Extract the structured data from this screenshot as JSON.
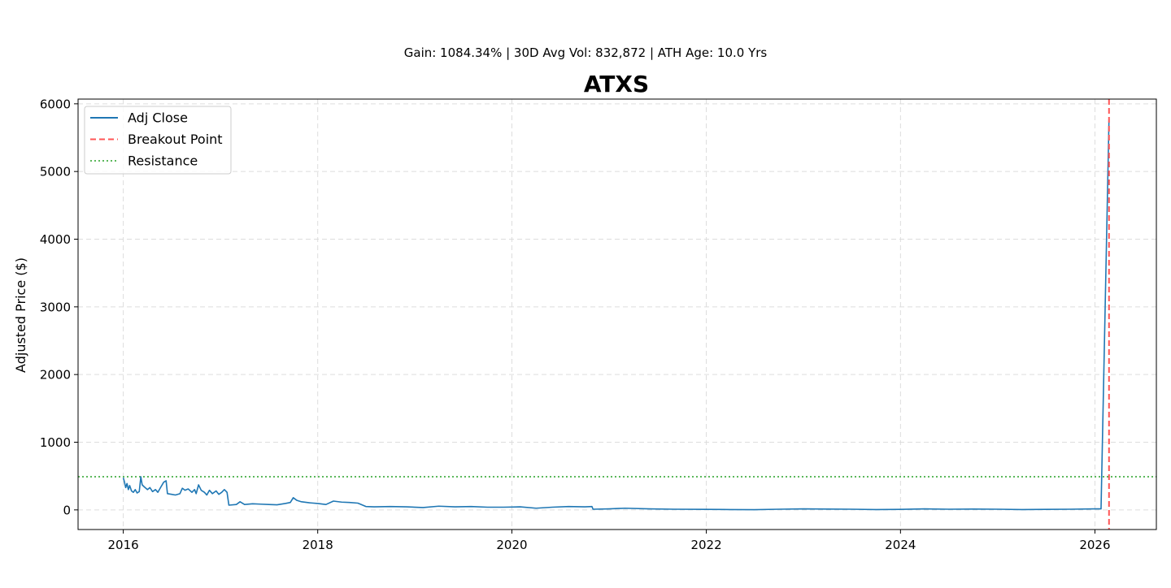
{
  "header": {
    "suptitle": "Gain: 1084.34% | 30D Avg Vol: 832,872 | ATH Age: 10.0 Yrs"
  },
  "chart_data": {
    "type": "line",
    "title": "ATXS",
    "xlabel": "",
    "ylabel": "Adjusted Price ($)",
    "xlim": [
      "2015-07-15",
      "2026-08-20"
    ],
    "ylim": [
      -290,
      6070
    ],
    "x_ticks": [
      "2016",
      "2018",
      "2020",
      "2022",
      "2024",
      "2026"
    ],
    "y_ticks": [
      0,
      1000,
      2000,
      3000,
      4000,
      5000,
      6000
    ],
    "grid": true,
    "legend_position": "upper-left",
    "colors": {
      "adj_close": "#1f77b4",
      "breakout": "#ff5555",
      "resistance": "#5cb85c",
      "grid": "#dddddd"
    },
    "legend": [
      "Adj Close",
      "Breakout Point",
      "Resistance"
    ],
    "series": [
      {
        "name": "Adj Close",
        "style": "solid",
        "points": [
          [
            "2016-01-01",
            475
          ],
          [
            "2016-01-05",
            420
          ],
          [
            "2016-01-10",
            330
          ],
          [
            "2016-01-15",
            390
          ],
          [
            "2016-01-20",
            300
          ],
          [
            "2016-01-25",
            360
          ],
          [
            "2016-02-01",
            280
          ],
          [
            "2016-02-08",
            260
          ],
          [
            "2016-02-15",
            300
          ],
          [
            "2016-02-22",
            250
          ],
          [
            "2016-03-01",
            270
          ],
          [
            "2016-03-07",
            490
          ],
          [
            "2016-03-12",
            370
          ],
          [
            "2016-03-20",
            340
          ],
          [
            "2016-04-01",
            300
          ],
          [
            "2016-04-10",
            330
          ],
          [
            "2016-04-20",
            270
          ],
          [
            "2016-05-01",
            300
          ],
          [
            "2016-05-10",
            260
          ],
          [
            "2016-05-20",
            330
          ],
          [
            "2016-06-01",
            410
          ],
          [
            "2016-06-10",
            430
          ],
          [
            "2016-06-15",
            240
          ],
          [
            "2016-07-01",
            230
          ],
          [
            "2016-07-15",
            220
          ],
          [
            "2016-08-01",
            240
          ],
          [
            "2016-08-10",
            320
          ],
          [
            "2016-08-20",
            290
          ],
          [
            "2016-09-01",
            310
          ],
          [
            "2016-09-15",
            260
          ],
          [
            "2016-09-25",
            300
          ],
          [
            "2016-10-01",
            240
          ],
          [
            "2016-10-10",
            370
          ],
          [
            "2016-10-20",
            290
          ],
          [
            "2016-11-01",
            260
          ],
          [
            "2016-11-10",
            220
          ],
          [
            "2016-11-20",
            290
          ],
          [
            "2016-12-01",
            240
          ],
          [
            "2016-12-15",
            280
          ],
          [
            "2016-12-25",
            230
          ],
          [
            "2017-01-05",
            260
          ],
          [
            "2017-01-15",
            300
          ],
          [
            "2017-01-25",
            260
          ],
          [
            "2017-02-01",
            70
          ],
          [
            "2017-03-01",
            80
          ],
          [
            "2017-03-15",
            120
          ],
          [
            "2017-04-01",
            80
          ],
          [
            "2017-05-01",
            90
          ],
          [
            "2017-06-01",
            85
          ],
          [
            "2017-07-01",
            80
          ],
          [
            "2017-08-01",
            75
          ],
          [
            "2017-09-01",
            95
          ],
          [
            "2017-09-20",
            110
          ],
          [
            "2017-10-01",
            180
          ],
          [
            "2017-10-15",
            140
          ],
          [
            "2017-11-01",
            120
          ],
          [
            "2017-12-01",
            105
          ],
          [
            "2018-01-01",
            95
          ],
          [
            "2018-02-01",
            80
          ],
          [
            "2018-03-01",
            130
          ],
          [
            "2018-04-01",
            115
          ],
          [
            "2018-05-01",
            110
          ],
          [
            "2018-06-01",
            100
          ],
          [
            "2018-07-01",
            50
          ],
          [
            "2018-08-01",
            45
          ],
          [
            "2018-10-01",
            50
          ],
          [
            "2018-12-01",
            45
          ],
          [
            "2019-02-01",
            35
          ],
          [
            "2019-04-01",
            55
          ],
          [
            "2019-06-01",
            45
          ],
          [
            "2019-08-01",
            50
          ],
          [
            "2019-10-01",
            40
          ],
          [
            "2019-12-01",
            40
          ],
          [
            "2020-02-01",
            45
          ],
          [
            "2020-04-01",
            25
          ],
          [
            "2020-06-01",
            40
          ],
          [
            "2020-08-01",
            50
          ],
          [
            "2020-10-01",
            45
          ],
          [
            "2020-10-28",
            50
          ],
          [
            "2020-11-01",
            10
          ],
          [
            "2021-01-01",
            15
          ],
          [
            "2021-03-01",
            25
          ],
          [
            "2021-06-01",
            15
          ],
          [
            "2021-09-01",
            10
          ],
          [
            "2022-01-01",
            8
          ],
          [
            "2022-04-01",
            5
          ],
          [
            "2022-07-01",
            3
          ],
          [
            "2022-10-01",
            10
          ],
          [
            "2023-01-01",
            15
          ],
          [
            "2023-04-01",
            12
          ],
          [
            "2023-07-01",
            10
          ],
          [
            "2023-10-01",
            5
          ],
          [
            "2024-01-01",
            8
          ],
          [
            "2024-04-01",
            15
          ],
          [
            "2024-07-01",
            10
          ],
          [
            "2024-10-01",
            12
          ],
          [
            "2025-01-01",
            10
          ],
          [
            "2025-04-01",
            5
          ],
          [
            "2025-07-01",
            8
          ],
          [
            "2025-10-01",
            10
          ],
          [
            "2026-01-01",
            15
          ],
          [
            "2026-01-24",
            15
          ],
          [
            "2026-02-23",
            5780
          ]
        ]
      }
    ],
    "breakout_x": "2026-02-23",
    "resistance_y": 490
  }
}
